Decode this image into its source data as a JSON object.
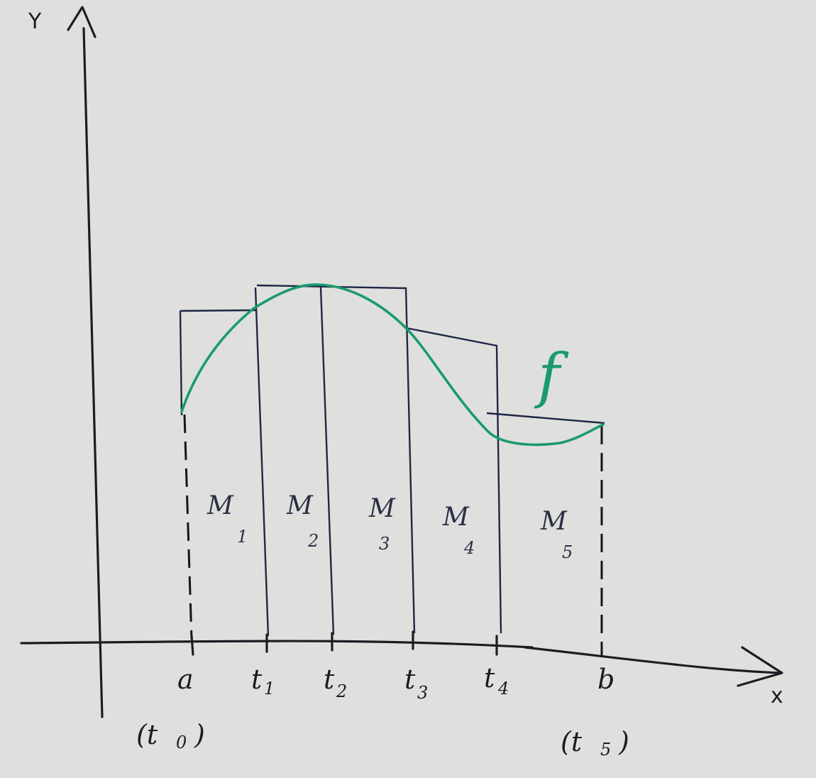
{
  "axes": {
    "y_label": "Y",
    "x_label": "x"
  },
  "function_label": "f",
  "rectangles": [
    {
      "label": "M",
      "sub": "1"
    },
    {
      "label": "M",
      "sub": "2"
    },
    {
      "label": "M",
      "sub": "3"
    },
    {
      "label": "M",
      "sub": "4"
    },
    {
      "label": "M",
      "sub": "5"
    }
  ],
  "ticks": [
    {
      "main": "a",
      "sub": "",
      "paren": "(t",
      "paren_sub": "0",
      "paren_close": ")"
    },
    {
      "main": "t",
      "sub": "1"
    },
    {
      "main": "t",
      "sub": "2"
    },
    {
      "main": "t",
      "sub": "3"
    },
    {
      "main": "t",
      "sub": "4"
    },
    {
      "main": "b",
      "sub": "",
      "paren": "(t",
      "paren_sub": "5",
      "paren_close": ")"
    }
  ],
  "colors": {
    "background": "#dfe0de",
    "ink": "#1c1c22",
    "rectangles": "#1f2745",
    "curve": "#1a9a6e"
  }
}
